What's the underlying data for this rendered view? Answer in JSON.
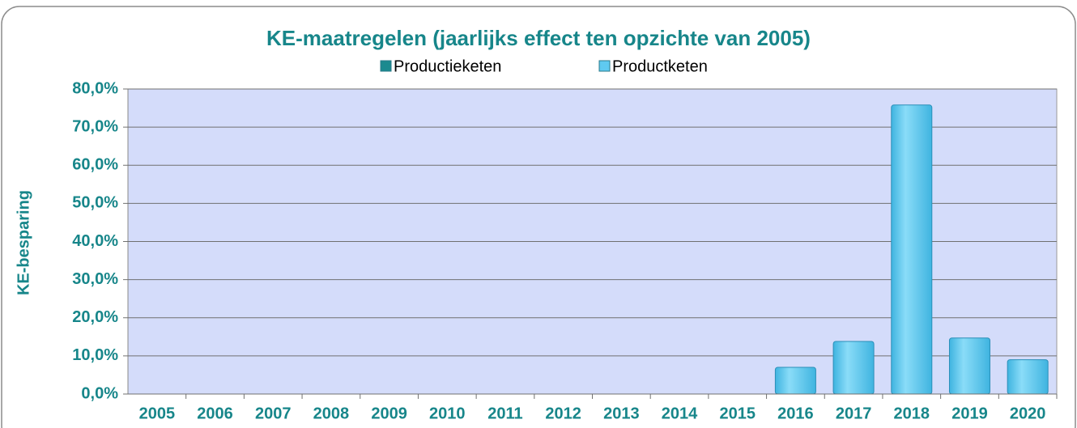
{
  "chart_data": {
    "type": "stacked_bar",
    "title": "KE-maatregelen (jaarlijks effect ten opzichte van 2005)",
    "y_label": "KE-besparing",
    "categories": [
      "2005",
      "2006",
      "2007",
      "2008",
      "2009",
      "2010",
      "2011",
      "2012",
      "2013",
      "2014",
      "2015",
      "2016",
      "2017",
      "2018",
      "2019",
      "2020"
    ],
    "series": [
      {
        "name": "Productieketen",
        "color": "#1b8a8f",
        "values": [
          0,
          0,
          0,
          0,
          0,
          0,
          0,
          0,
          0,
          0,
          0,
          0,
          0,
          0,
          0,
          0
        ]
      },
      {
        "name": "Productketen",
        "color": "#5fcaf0",
        "values": [
          0,
          0,
          0,
          0,
          0,
          0,
          0,
          0,
          0,
          0,
          0,
          7.0,
          13.8,
          75.8,
          14.7,
          9.0
        ]
      }
    ],
    "ylim": [
      0,
      80
    ],
    "yticks": [
      {
        "value": 0,
        "label": "0,0%"
      },
      {
        "value": 10,
        "label": "10,0%"
      },
      {
        "value": 20,
        "label": "20,0%"
      },
      {
        "value": 30,
        "label": "30,0%"
      },
      {
        "value": 40,
        "label": "40,0%"
      },
      {
        "value": 50,
        "label": "50,0%"
      },
      {
        "value": 60,
        "label": "60,0%"
      },
      {
        "value": 70,
        "label": "70,0%"
      },
      {
        "value": 80,
        "label": "80,0%"
      }
    ],
    "grid": true
  }
}
